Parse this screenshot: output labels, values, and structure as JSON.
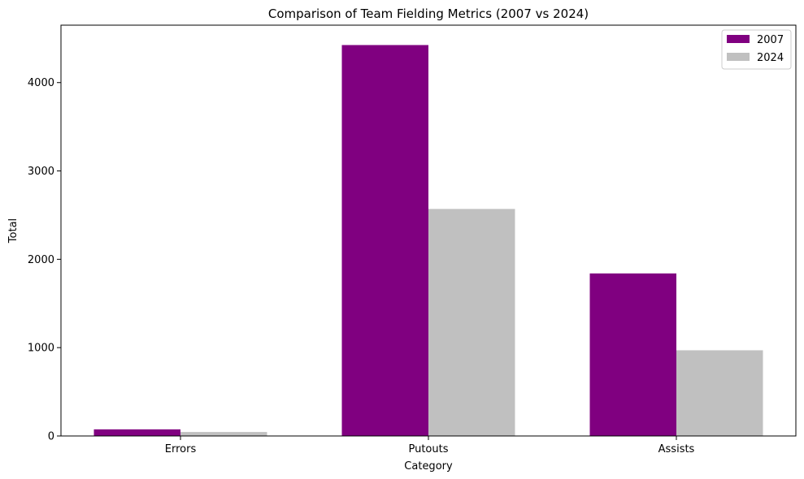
{
  "chart_data": {
    "type": "bar",
    "title": "Comparison of Team Fielding Metrics (2007 vs 2024)",
    "xlabel": "Category",
    "ylabel": "Total",
    "categories": [
      "Errors",
      "Putouts",
      "Assists"
    ],
    "series": [
      {
        "name": "2007",
        "color": "#800080",
        "values": [
          75,
          4425,
          1840
        ]
      },
      {
        "name": "2024",
        "color": "#c0c0c0",
        "values": [
          45,
          2570,
          970
        ]
      }
    ],
    "ylim": [
      0,
      4650
    ],
    "yticks": [
      0,
      1000,
      2000,
      3000,
      4000
    ],
    "grid": false,
    "legend": "top-right"
  }
}
